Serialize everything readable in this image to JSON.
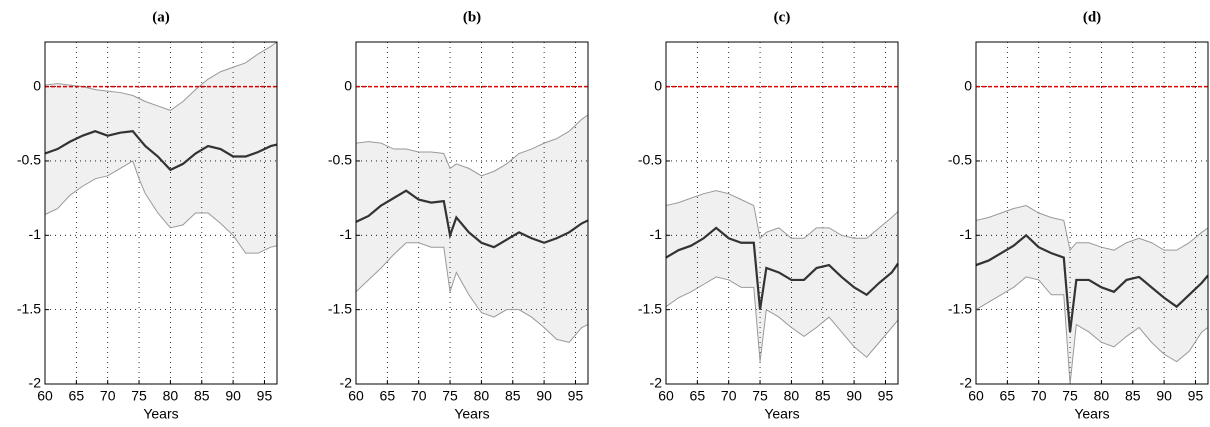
{
  "chart_data": [
    {
      "type": "line",
      "title": "(a)",
      "xlabel": "Years",
      "x": [
        60,
        62,
        64,
        66,
        68,
        70,
        72,
        74,
        75,
        76,
        78,
        80,
        82,
        84,
        86,
        88,
        90,
        92,
        94,
        96,
        97
      ],
      "xlim": [
        60,
        97
      ],
      "ylim": [
        -2,
        0.3
      ],
      "xticks": [
        60,
        65,
        70,
        75,
        80,
        85,
        90,
        95
      ],
      "yticks": [
        -2,
        -1.5,
        -1,
        -0.5,
        0
      ],
      "grid": true,
      "band_color": "#f0f0f0",
      "reference_line": {
        "value": 0,
        "color": "#e00000"
      },
      "series": [
        {
          "color": "#999999",
          "values": [
            0.01,
            0.02,
            0.01,
            0.0,
            -0.02,
            -0.03,
            -0.04,
            -0.06,
            -0.08,
            -0.1,
            -0.13,
            -0.16,
            -0.1,
            -0.02,
            0.05,
            0.1,
            0.13,
            0.16,
            0.22,
            0.27,
            0.3
          ]
        },
        {
          "color": "#999999",
          "values": [
            -0.86,
            -0.82,
            -0.73,
            -0.67,
            -0.62,
            -0.6,
            -0.55,
            -0.5,
            -0.62,
            -0.72,
            -0.85,
            -0.95,
            -0.93,
            -0.85,
            -0.85,
            -0.92,
            -1.0,
            -1.12,
            -1.12,
            -1.08,
            -1.07
          ]
        },
        {
          "color": "#333333",
          "values": [
            -0.45,
            -0.42,
            -0.37,
            -0.33,
            -0.3,
            -0.33,
            -0.31,
            -0.3,
            -0.35,
            -0.4,
            -0.47,
            -0.56,
            -0.52,
            -0.45,
            -0.4,
            -0.42,
            -0.47,
            -0.47,
            -0.44,
            -0.4,
            -0.39
          ]
        }
      ]
    },
    {
      "type": "line",
      "title": "(b)",
      "xlabel": "Years",
      "x": [
        60,
        62,
        64,
        66,
        68,
        70,
        72,
        74,
        75,
        76,
        78,
        80,
        82,
        84,
        86,
        88,
        90,
        92,
        94,
        96,
        97
      ],
      "xlim": [
        60,
        97
      ],
      "ylim": [
        -2,
        0.3
      ],
      "xticks": [
        60,
        65,
        70,
        75,
        80,
        85,
        90,
        95
      ],
      "yticks": [
        -2,
        -1.5,
        -1,
        -0.5,
        0
      ],
      "grid": true,
      "band_color": "#f0f0f0",
      "reference_line": {
        "value": 0,
        "color": "#e00000"
      },
      "series": [
        {
          "color": "#999999",
          "values": [
            -0.38,
            -0.37,
            -0.38,
            -0.42,
            -0.42,
            -0.44,
            -0.44,
            -0.45,
            -0.55,
            -0.52,
            -0.55,
            -0.6,
            -0.57,
            -0.52,
            -0.45,
            -0.42,
            -0.38,
            -0.35,
            -0.3,
            -0.22,
            -0.19
          ]
        },
        {
          "color": "#999999",
          "values": [
            -1.38,
            -1.3,
            -1.22,
            -1.13,
            -1.05,
            -1.05,
            -1.08,
            -1.08,
            -1.38,
            -1.25,
            -1.4,
            -1.52,
            -1.55,
            -1.5,
            -1.5,
            -1.55,
            -1.62,
            -1.7,
            -1.72,
            -1.62,
            -1.6
          ]
        },
        {
          "color": "#333333",
          "values": [
            -0.91,
            -0.87,
            -0.8,
            -0.75,
            -0.7,
            -0.76,
            -0.78,
            -0.77,
            -1.0,
            -0.88,
            -0.98,
            -1.05,
            -1.08,
            -1.03,
            -0.98,
            -1.02,
            -1.05,
            -1.02,
            -0.98,
            -0.92,
            -0.9
          ]
        }
      ]
    },
    {
      "type": "line",
      "title": "(c)",
      "xlabel": "Years",
      "x": [
        60,
        62,
        64,
        66,
        68,
        70,
        72,
        74,
        75,
        76,
        78,
        80,
        82,
        84,
        86,
        88,
        90,
        92,
        94,
        96,
        97
      ],
      "xlim": [
        60,
        97
      ],
      "ylim": [
        -2,
        0.3
      ],
      "xticks": [
        60,
        65,
        70,
        75,
        80,
        85,
        90,
        95
      ],
      "yticks": [
        -2,
        -1.5,
        -1,
        -0.5,
        0
      ],
      "grid": true,
      "band_color": "#f0f0f0",
      "reference_line": {
        "value": 0,
        "color": "#e00000"
      },
      "series": [
        {
          "color": "#999999",
          "values": [
            -0.8,
            -0.78,
            -0.75,
            -0.72,
            -0.7,
            -0.72,
            -0.76,
            -0.8,
            -1.02,
            -0.98,
            -0.95,
            -1.02,
            -1.02,
            -0.95,
            -0.95,
            -1.0,
            -1.02,
            -1.02,
            -0.95,
            -0.88,
            -0.84
          ]
        },
        {
          "color": "#999999",
          "values": [
            -1.48,
            -1.42,
            -1.38,
            -1.33,
            -1.28,
            -1.3,
            -1.35,
            -1.35,
            -1.85,
            -1.5,
            -1.55,
            -1.62,
            -1.68,
            -1.62,
            -1.55,
            -1.65,
            -1.75,
            -1.82,
            -1.72,
            -1.62,
            -1.57
          ]
        },
        {
          "color": "#333333",
          "values": [
            -1.15,
            -1.1,
            -1.07,
            -1.02,
            -0.95,
            -1.02,
            -1.05,
            -1.05,
            -1.5,
            -1.22,
            -1.25,
            -1.3,
            -1.3,
            -1.22,
            -1.2,
            -1.28,
            -1.35,
            -1.4,
            -1.32,
            -1.25,
            -1.19
          ]
        }
      ]
    },
    {
      "type": "line",
      "title": "(d)",
      "xlabel": "Years",
      "x": [
        60,
        62,
        64,
        66,
        68,
        70,
        72,
        74,
        75,
        76,
        78,
        80,
        82,
        84,
        86,
        88,
        90,
        92,
        94,
        96,
        97
      ],
      "xlim": [
        60,
        97
      ],
      "ylim": [
        -2,
        0.3
      ],
      "xticks": [
        60,
        65,
        70,
        75,
        80,
        85,
        90,
        95
      ],
      "yticks": [
        -2,
        -1.5,
        -1,
        -0.5,
        0
      ],
      "grid": true,
      "band_color": "#f0f0f0",
      "reference_line": {
        "value": 0,
        "color": "#e00000"
      },
      "series": [
        {
          "color": "#999999",
          "values": [
            -0.9,
            -0.88,
            -0.85,
            -0.82,
            -0.8,
            -0.85,
            -0.88,
            -0.9,
            -1.1,
            -1.05,
            -1.05,
            -1.08,
            -1.1,
            -1.05,
            -1.02,
            -1.05,
            -1.1,
            -1.1,
            -1.05,
            -0.98,
            -0.95
          ]
        },
        {
          "color": "#999999",
          "values": [
            -1.5,
            -1.45,
            -1.4,
            -1.35,
            -1.28,
            -1.3,
            -1.4,
            -1.4,
            -2.0,
            -1.6,
            -1.65,
            -1.72,
            -1.75,
            -1.68,
            -1.62,
            -1.72,
            -1.8,
            -1.85,
            -1.78,
            -1.65,
            -1.62
          ]
        },
        {
          "color": "#333333",
          "values": [
            -1.2,
            -1.17,
            -1.12,
            -1.07,
            -1.0,
            -1.08,
            -1.12,
            -1.15,
            -1.65,
            -1.3,
            -1.3,
            -1.35,
            -1.38,
            -1.3,
            -1.28,
            -1.35,
            -1.42,
            -1.48,
            -1.4,
            -1.32,
            -1.27
          ]
        }
      ]
    }
  ]
}
